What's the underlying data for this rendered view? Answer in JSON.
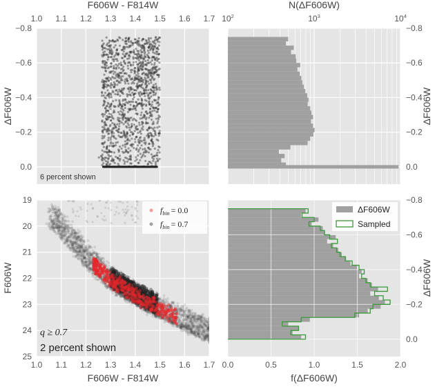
{
  "chart_data": [
    {
      "panel": "top-left",
      "type": "scatter",
      "xlabel": "F606W - F814W",
      "ylabel": "ΔF606W",
      "xlim": [
        1.0,
        1.7
      ],
      "ylim": [
        0.1,
        -0.8
      ],
      "xticks": [
        "1.0",
        "1.1",
        "1.2",
        "1.3",
        "1.4",
        "1.5",
        "1.6",
        "1.7"
      ],
      "yticks": [
        "-0.8",
        "-0.6",
        "-0.4",
        "-0.2",
        "0.0"
      ],
      "x_axis_position": "top",
      "annotation": "6 percent shown",
      "point_color": "#333333",
      "x_range_of_points": [
        1.26,
        1.5
      ],
      "y_range_of_points": [
        -0.75,
        0.0
      ],
      "grid": true
    },
    {
      "panel": "top-right",
      "type": "bar",
      "orientation": "horizontal",
      "xlabel": "N(ΔF606W)",
      "ylabel": "ΔF606W",
      "xscale": "log",
      "xlim": [
        100,
        10000
      ],
      "ylim": [
        0.1,
        -0.8
      ],
      "xticks": [
        {
          "base": "10",
          "exp": "2"
        },
        {
          "base": "10",
          "exp": "3"
        },
        {
          "base": "10",
          "exp": "4"
        }
      ],
      "yticks": [
        "-0.8",
        "-0.6",
        "-0.4",
        "-0.2",
        "0.0"
      ],
      "x_axis_position": "top",
      "y_axis_position": "right",
      "bin_width": 0.025,
      "bin_start": -0.75,
      "values": [
        500,
        470,
        580,
        540,
        610,
        620,
        690,
        640,
        680,
        710,
        730,
        760,
        790,
        830,
        860,
        840,
        900,
        930,
        970,
        920,
        970,
        1010,
        980,
        900,
        840,
        530,
        390,
        455,
        415,
        470
      ],
      "spike": {
        "y": 0.0,
        "value": 9500
      },
      "color": "#a0a0a0",
      "grid": true
    },
    {
      "panel": "bottom-left",
      "type": "scatter",
      "xlabel": "F606W - F814W",
      "ylabel": "F606W",
      "xlim": [
        1.0,
        1.7
      ],
      "ylim": [
        25,
        19
      ],
      "xticks": [
        "1.0",
        "1.1",
        "1.2",
        "1.3",
        "1.4",
        "1.5",
        "1.6",
        "1.7"
      ],
      "yticks": [
        "19",
        "20",
        "21",
        "22",
        "23",
        "24",
        "25"
      ],
      "legend": {
        "placement": "top-right",
        "entries": [
          {
            "label_base": "f",
            "label_sub": "bin",
            "label_value": "= 0.0",
            "color": "#e8262a"
          },
          {
            "label_base": "f",
            "label_sub": "bin",
            "label_value": "= 0.7",
            "color": "#333333"
          }
        ]
      },
      "annotation_q": "q ≥ 0.7",
      "annotation": "2 percent shown",
      "grid": true
    },
    {
      "panel": "bottom-right",
      "type": "bar",
      "orientation": "horizontal",
      "xlabel": "f(ΔF606W)",
      "ylabel": "ΔF606W",
      "xlim": [
        0.0,
        2.0
      ],
      "ylim": [
        0.1,
        -0.8
      ],
      "xticks": [
        "0.0",
        "0.5",
        "1.0",
        "1.5",
        "2.0"
      ],
      "yticks": [
        "-0.8",
        "-0.6",
        "-0.4",
        "-0.2",
        "0.0"
      ],
      "y_axis_position": "right",
      "bin_width": 0.025,
      "bin_start": -0.75,
      "series": [
        {
          "name": "ΔF606W",
          "style": "filled",
          "color": "#a0a0a0",
          "values": [
            0.9,
            0.85,
            1.05,
            0.97,
            1.1,
            1.12,
            1.25,
            1.15,
            1.22,
            1.28,
            1.32,
            1.37,
            1.42,
            1.5,
            1.55,
            1.52,
            1.62,
            1.67,
            1.74,
            1.65,
            1.75,
            1.82,
            1.77,
            1.62,
            1.52,
            0.95,
            0.7,
            0.82,
            0.75,
            0.85
          ]
        },
        {
          "name": "Sampled",
          "style": "step",
          "color": "#3a9a3a",
          "values": [
            0.93,
            0.86,
            1.0,
            0.94,
            1.07,
            1.12,
            1.18,
            1.27,
            1.2,
            1.26,
            1.3,
            1.36,
            1.44,
            1.52,
            1.58,
            1.55,
            1.6,
            1.65,
            1.85,
            1.7,
            1.8,
            1.88,
            1.68,
            1.65,
            1.47,
            0.85,
            0.63,
            0.82,
            0.73,
            0.9
          ]
        }
      ],
      "legend": {
        "placement": "top-right"
      },
      "grid": true
    }
  ]
}
